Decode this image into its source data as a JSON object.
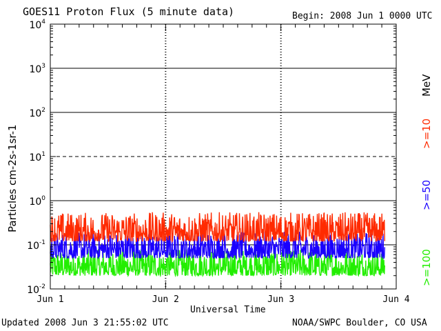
{
  "header": {
    "title": "GOES11 Proton Flux (5 minute data)",
    "begin": "Begin: 2008 Jun 1 0000 UTC"
  },
  "footer": {
    "updated": "Updated 2008 Jun  3 21:55:02 UTC",
    "credit": "NOAA/SWPC Boulder, CO USA"
  },
  "colors": {
    "ge10": "#ff2a00",
    "ge50": "#1a00ff",
    "ge100": "#22ee00",
    "frame": "#000000"
  },
  "chart_data": {
    "type": "line",
    "title": "GOES11 Proton Flux (5 minute data)",
    "xlabel": "Universal Time",
    "ylabel": "Particles cm-2s-1sr-1",
    "y_scale": "log",
    "ylim": [
      0.01,
      10000
    ],
    "xlim": [
      "2008-06-01",
      "2008-06-04"
    ],
    "x_ticks": [
      "Jun 1",
      "Jun 2",
      "Jun 3",
      "Jun 4"
    ],
    "y_ticks": [
      {
        "base": "10",
        "exp": "4"
      },
      {
        "base": "10",
        "exp": "3"
      },
      {
        "base": "10",
        "exp": "2"
      },
      {
        "base": "10",
        "exp": "1"
      },
      {
        "base": "10",
        "exp": "0"
      },
      {
        "base": "10",
        "exp": "-1"
      },
      {
        "base": "10",
        "exp": "-2"
      }
    ],
    "right_unit": "MeV",
    "series": [
      {
        "name": ">=10",
        "approx_range": [
          0.12,
          0.55
        ]
      },
      {
        "name": ">=50",
        "approx_range": [
          0.05,
          0.2
        ]
      },
      {
        "name": ">=100",
        "approx_range": [
          0.02,
          0.08
        ]
      }
    ]
  }
}
